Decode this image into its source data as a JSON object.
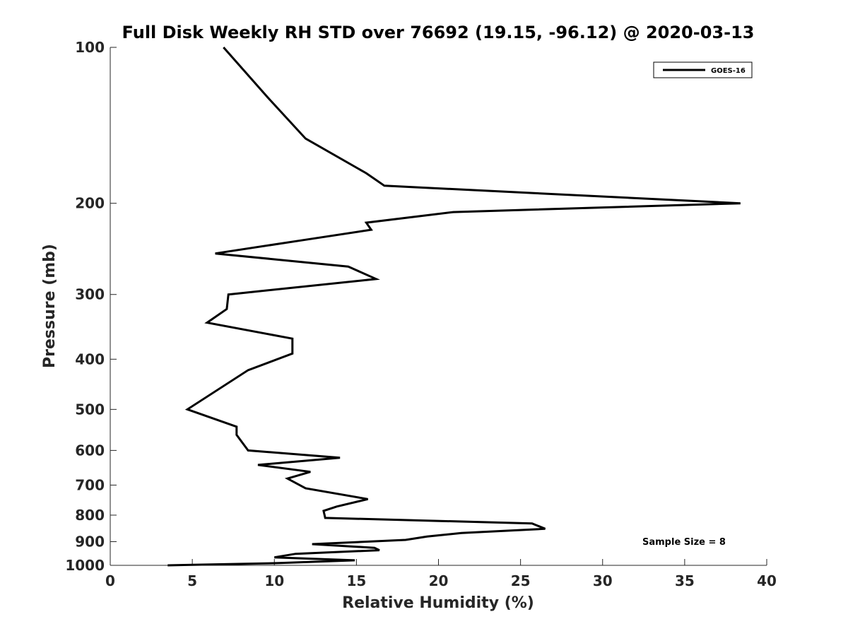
{
  "chart_data": {
    "type": "line",
    "title": "Full Disk Weekly RH STD over 76692 (19.15, -96.12) @ 2020-03-13",
    "xlabel": "Relative Humidity (%)",
    "ylabel": "Pressure (mb)",
    "xlim": [
      0,
      40
    ],
    "ylim": [
      100,
      1000
    ],
    "yscale": "log",
    "y_reversed": true,
    "x_ticks": [
      0,
      5,
      10,
      15,
      20,
      25,
      30,
      35,
      40
    ],
    "y_ticks": [
      100,
      200,
      300,
      400,
      500,
      600,
      700,
      800,
      900,
      1000
    ],
    "grid": false,
    "legend_position": "top-right",
    "annotation": "Sample Size = 8",
    "series": [
      {
        "name": "GOES-16",
        "color": "#000000",
        "points": [
          [
            6.9,
            100
          ],
          [
            9.6,
            125
          ],
          [
            11.9,
            150
          ],
          [
            15.6,
            175
          ],
          [
            16.7,
            185
          ],
          [
            38.4,
            200
          ],
          [
            20.9,
            208
          ],
          [
            15.6,
            218
          ],
          [
            15.9,
            225
          ],
          [
            11.6,
            236
          ],
          [
            6.4,
            250
          ],
          [
            14.5,
            265
          ],
          [
            16.2,
            280
          ],
          [
            7.2,
            300
          ],
          [
            7.1,
            320
          ],
          [
            5.9,
            340
          ],
          [
            11.1,
            365
          ],
          [
            11.1,
            390
          ],
          [
            8.4,
            420
          ],
          [
            4.7,
            500
          ],
          [
            7.7,
            540
          ],
          [
            7.7,
            560
          ],
          [
            8.4,
            600
          ],
          [
            14.0,
            620
          ],
          [
            9.0,
            640
          ],
          [
            12.2,
            660
          ],
          [
            10.8,
            680
          ],
          [
            11.9,
            710
          ],
          [
            15.7,
            745
          ],
          [
            13.8,
            770
          ],
          [
            13.0,
            785
          ],
          [
            13.1,
            810
          ],
          [
            25.7,
            830
          ],
          [
            26.5,
            850
          ],
          [
            21.4,
            866
          ],
          [
            19.3,
            880
          ],
          [
            18.0,
            893
          ],
          [
            12.3,
            910
          ],
          [
            16.1,
            925
          ],
          [
            16.4,
            935
          ],
          [
            11.3,
            950
          ],
          [
            10.0,
            965
          ],
          [
            14.9,
            978
          ],
          [
            10.3,
            990
          ],
          [
            3.5,
            1000
          ]
        ]
      }
    ]
  }
}
